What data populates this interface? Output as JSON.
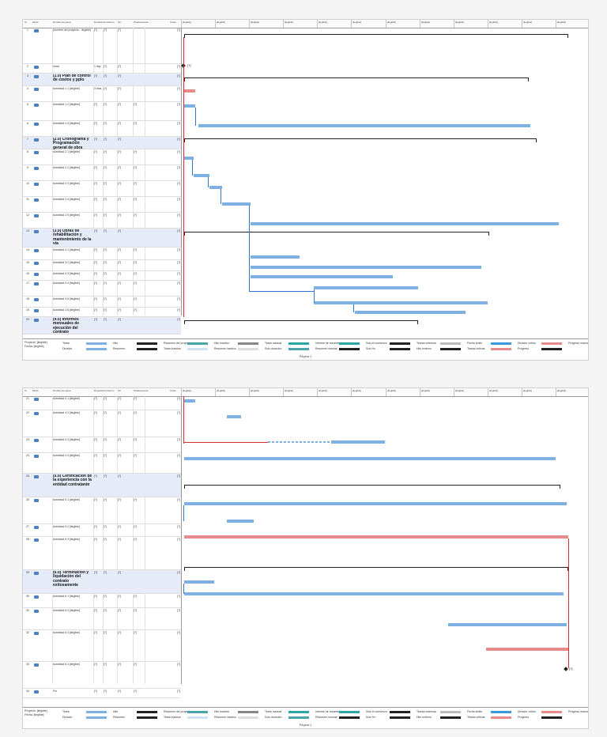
{
  "header": {
    "id": "Id",
    "mode": "Modo",
    "name": "Nombre de tarea",
    "duration": "Duración",
    "start": "Comienzo",
    "finish": "Fin",
    "predecessors": "Predecesoras",
    "cost": "Costo",
    "timeline": [
      "[ilegible]",
      "[ilegible]",
      "[ilegible]",
      "[ilegible]",
      "[ilegible]",
      "[ilegible]",
      "[ilegible]",
      "[ilegible]",
      "[ilegible]",
      "[ilegible]",
      "[ilegible]",
      "[ilegible]"
    ]
  },
  "page1": {
    "tasks": [
      {
        "id": "1",
        "name": "[nombre del proyecto - ilegible]",
        "dur": "[?]",
        "start": "[?]",
        "finish": "[?]",
        "pred": "",
        "cost": "[?]",
        "sum": false
      },
      {
        "id": "2",
        "name": "Inicio",
        "dur": "1 day",
        "start": "[?]",
        "finish": "[?]",
        "pred": "",
        "cost": "[?]",
        "sum": false
      },
      {
        "id": "3",
        "name": "(1.0) Plan de control de costos y pplo",
        "dur": "[?]",
        "start": "[?]",
        "finish": "[?]",
        "pred": "",
        "cost": "[?]",
        "sum": true
      },
      {
        "id": "4",
        "name": "Actividad 1.1 [ilegible]",
        "dur": "3 días",
        "start": "[?]",
        "finish": "[?]",
        "pred": "",
        "cost": "[?]",
        "sum": false
      },
      {
        "id": "5",
        "name": "Actividad 1.2 [ilegible]",
        "dur": "[?]",
        "start": "[?]",
        "finish": "[?]",
        "pred": "[?]",
        "cost": "[?]",
        "sum": false
      },
      {
        "id": "6",
        "name": "Actividad 1.3 [ilegible]",
        "dur": "[?]",
        "start": "[?]",
        "finish": "[?]",
        "pred": "[?]",
        "cost": "[?]",
        "sum": false
      },
      {
        "id": "7",
        "name": "(2.0) Cronograma y Programación general de obra",
        "dur": "[?]",
        "start": "[?]",
        "finish": "[?]",
        "pred": "",
        "cost": "[?]",
        "sum": true
      },
      {
        "id": "8",
        "name": "Actividad 2.1 [ilegible]",
        "dur": "[?]",
        "start": "[?]",
        "finish": "[?]",
        "pred": "[?]",
        "cost": "[?]",
        "sum": false
      },
      {
        "id": "9",
        "name": "Actividad 2.2 [ilegible]",
        "dur": "[?]",
        "start": "[?]",
        "finish": "[?]",
        "pred": "[?]",
        "cost": "[?]",
        "sum": false
      },
      {
        "id": "10",
        "name": "Actividad 2.3 [ilegible]",
        "dur": "[?]",
        "start": "[?]",
        "finish": "[?]",
        "pred": "[?]",
        "cost": "[?]",
        "sum": false
      },
      {
        "id": "11",
        "name": "Actividad 2.4 [ilegible]",
        "dur": "[?]",
        "start": "[?]",
        "finish": "[?]",
        "pred": "[?]",
        "cost": "[?]",
        "sum": false
      },
      {
        "id": "12",
        "name": "Actividad 2.5 [ilegible]",
        "dur": "[?]",
        "start": "[?]",
        "finish": "[?]",
        "pred": "[?]",
        "cost": "[?]",
        "sum": false
      },
      {
        "id": "13",
        "name": "(3.0) Obras de rehabilitación y mantenimiento de la vía",
        "dur": "[?]",
        "start": "[?]",
        "finish": "[?]",
        "pred": "",
        "cost": "[?]",
        "sum": true
      },
      {
        "id": "14",
        "name": "Actividad 3.1 [ilegible]",
        "dur": "[?]",
        "start": "[?]",
        "finish": "[?]",
        "pred": "[?]",
        "cost": "[?]",
        "sum": false
      },
      {
        "id": "15",
        "name": "Actividad 3.2 [ilegible]",
        "dur": "[?]",
        "start": "[?]",
        "finish": "[?]",
        "pred": "[?]",
        "cost": "[?]",
        "sum": false
      },
      {
        "id": "16",
        "name": "Actividad 3.3 [ilegible]",
        "dur": "[?]",
        "start": "[?]",
        "finish": "[?]",
        "pred": "[?]",
        "cost": "[?]",
        "sum": false
      },
      {
        "id": "17",
        "name": "Actividad 3.4 [ilegible]",
        "dur": "[?]",
        "start": "[?]",
        "finish": "[?]",
        "pred": "[?]",
        "cost": "[?]",
        "sum": false
      },
      {
        "id": "18",
        "name": "Actividad 3.5 [ilegible]",
        "dur": "[?]",
        "start": "[?]",
        "finish": "[?]",
        "pred": "[?]",
        "cost": "[?]",
        "sum": false
      },
      {
        "id": "19",
        "name": "Actividad 3.6 [ilegible]",
        "dur": "[?]",
        "start": "[?]",
        "finish": "[?]",
        "pred": "[?]",
        "cost": "[?]",
        "sum": false
      },
      {
        "id": "20",
        "name": "(4.0) Informes mensuales de ejecución del contrato",
        "dur": "[?]",
        "start": "[?]",
        "finish": "[?]",
        "pred": "",
        "cost": "[?]",
        "sum": true
      }
    ],
    "milestone_label": "[?]"
  },
  "page2": {
    "tasks": [
      {
        "id": "21",
        "name": "Actividad 4.1 [ilegible]",
        "dur": "[?]",
        "start": "[?]",
        "finish": "[?]",
        "pred": "[?]",
        "cost": "[?]",
        "sum": false
      },
      {
        "id": "22",
        "name": "Actividad 4.2 [ilegible]",
        "dur": "[?]",
        "start": "[?]",
        "finish": "[?]",
        "pred": "[?]",
        "cost": "[?]",
        "sum": false
      },
      {
        "id": "23",
        "name": "Actividad 4.3 [ilegible]",
        "dur": "[?]",
        "start": "[?]",
        "finish": "[?]",
        "pred": "[?]",
        "cost": "[?]",
        "sum": false
      },
      {
        "id": "24",
        "name": "Actividad 4.4 [ilegible]",
        "dur": "[?]",
        "start": "[?]",
        "finish": "[?]",
        "pred": "[?]",
        "cost": "[?]",
        "sum": false
      },
      {
        "id": "25",
        "name": "(5.0) Certificación de la experiencia con la entidad contratante",
        "dur": "[?]",
        "start": "[?]",
        "finish": "[?]",
        "pred": "",
        "cost": "[?]",
        "sum": true
      },
      {
        "id": "26",
        "name": "Actividad 5.1 [ilegible]",
        "dur": "[?]",
        "start": "[?]",
        "finish": "[?]",
        "pred": "[?]",
        "cost": "[?]",
        "sum": false
      },
      {
        "id": "27",
        "name": "Actividad 5.2 [ilegible]",
        "dur": "[?]",
        "start": "[?]",
        "finish": "[?]",
        "pred": "[?]",
        "cost": "[?]",
        "sum": false
      },
      {
        "id": "28",
        "name": "Actividad 5.3 [ilegible]",
        "dur": "[?]",
        "start": "[?]",
        "finish": "[?]",
        "pred": "[?]",
        "cost": "[?]",
        "sum": false
      },
      {
        "id": "29",
        "name": "(6.0) Terminación y liquidación del contrato exitosamente",
        "dur": "[?]",
        "start": "[?]",
        "finish": "[?]",
        "pred": "",
        "cost": "[?]",
        "sum": true
      },
      {
        "id": "30",
        "name": "Actividad 6.1 [ilegible]",
        "dur": "[?]",
        "start": "[?]",
        "finish": "[?]",
        "pred": "[?]",
        "cost": "[?]",
        "sum": false
      },
      {
        "id": "31",
        "name": "Actividad 6.2 [ilegible]",
        "dur": "[?]",
        "start": "[?]",
        "finish": "[?]",
        "pred": "[?]",
        "cost": "[?]",
        "sum": false
      },
      {
        "id": "32",
        "name": "Actividad 6.3 [ilegible]",
        "dur": "[?]",
        "start": "[?]",
        "finish": "[?]",
        "pred": "[?]",
        "cost": "[?]",
        "sum": false
      },
      {
        "id": "33",
        "name": "Actividad 6.4 [ilegible]",
        "dur": "[?]",
        "start": "[?]",
        "finish": "[?]",
        "pred": "[?]",
        "cost": "[?]",
        "sum": false
      },
      {
        "id": "34",
        "name": "Fin",
        "dur": "[?]",
        "start": "[?]",
        "finish": "[?]",
        "pred": "[?]",
        "cost": "[?]",
        "sum": false
      }
    ],
    "milestone_label": "[?]"
  },
  "legend": {
    "project": "Proyecto: [ilegible]",
    "date": "Fecha: [ilegible]",
    "items": [
      "Tarea",
      "División",
      "Hito",
      "Resumen",
      "Resumen del proyecto",
      "Tarea inactiva",
      "Hito inactivo",
      "Resumen inactivo",
      "Tarea manual",
      "Solo duración",
      "Informe de resumen manual",
      "Resumen manual",
      "Solo el comienzo",
      "Solo fin",
      "Tareas externas",
      "Hito externo",
      "Fecha límite",
      "Tareas críticas",
      "División crítica",
      "Progreso",
      "Progreso manual"
    ]
  },
  "footer": {
    "page": "Página 1"
  },
  "colors": {
    "task": "#7fb0e4",
    "critical": "#e78a8a",
    "link": "#2f78cf",
    "critical_link": "#d62f2f",
    "summary_row": "#e5ecf7"
  }
}
